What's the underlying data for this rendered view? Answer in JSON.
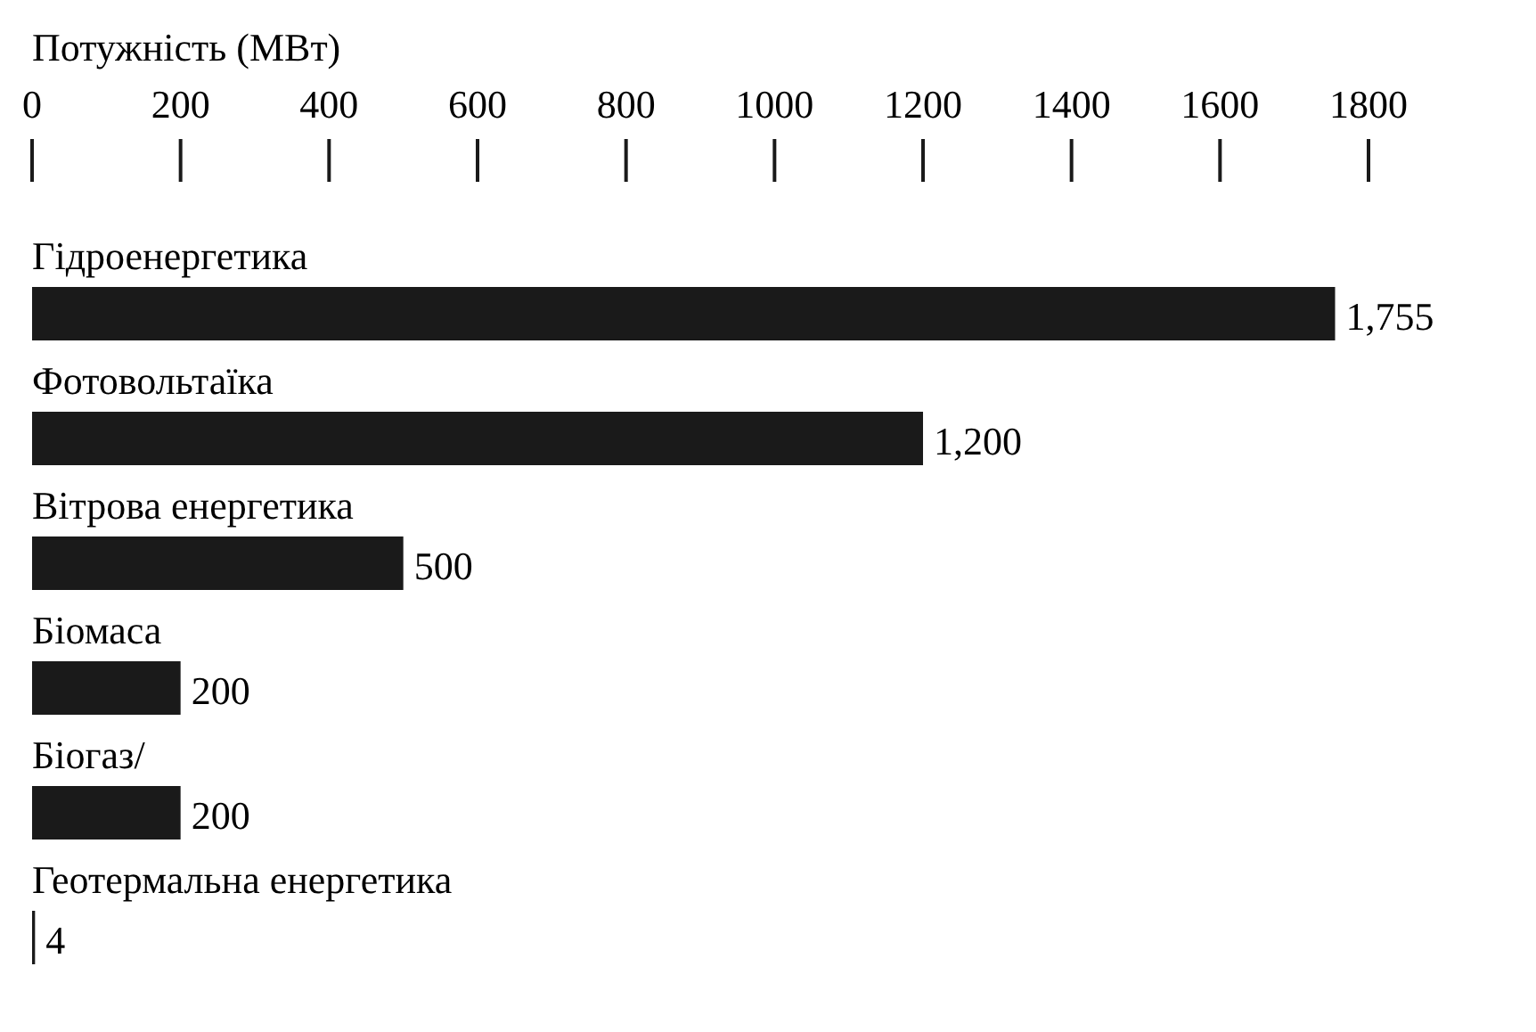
{
  "chart_data": {
    "type": "bar",
    "orientation": "horizontal",
    "xlabel": "Потужність (МВт)",
    "categories": [
      "Гідроенергетика",
      "Фотовольтаїка",
      "Вітрова енергетика",
      "Біомаса",
      "Біогаз/",
      "Геотермальна  енергетика"
    ],
    "values": [
      1755,
      1200,
      500,
      200,
      200,
      4
    ],
    "value_labels": [
      "1,755",
      "1,200",
      "500",
      "200",
      "200",
      "4"
    ],
    "color": "#1a1a1a",
    "xlim": [
      0,
      1800
    ],
    "xticks": [
      0,
      200,
      400,
      600,
      800,
      1000,
      1200,
      1400,
      1600,
      1800
    ],
    "grid": false
  }
}
